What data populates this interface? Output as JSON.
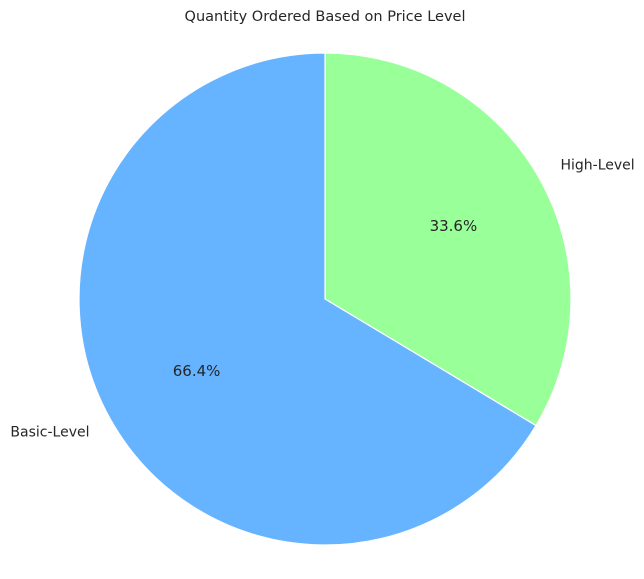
{
  "chart_data": {
    "type": "pie",
    "title": "Quantity Ordered Based on Price Level",
    "start_angle_deg": 90,
    "direction": "clockwise",
    "legend": "none",
    "slices": [
      {
        "label": "High-Level",
        "value": 33.6,
        "pct_label": "33.6%",
        "color": "#99ff99"
      },
      {
        "label": "Basic-Level",
        "value": 66.4,
        "pct_label": "66.4%",
        "color": "#66b3ff"
      }
    ],
    "edge_color": "#ffffff"
  }
}
